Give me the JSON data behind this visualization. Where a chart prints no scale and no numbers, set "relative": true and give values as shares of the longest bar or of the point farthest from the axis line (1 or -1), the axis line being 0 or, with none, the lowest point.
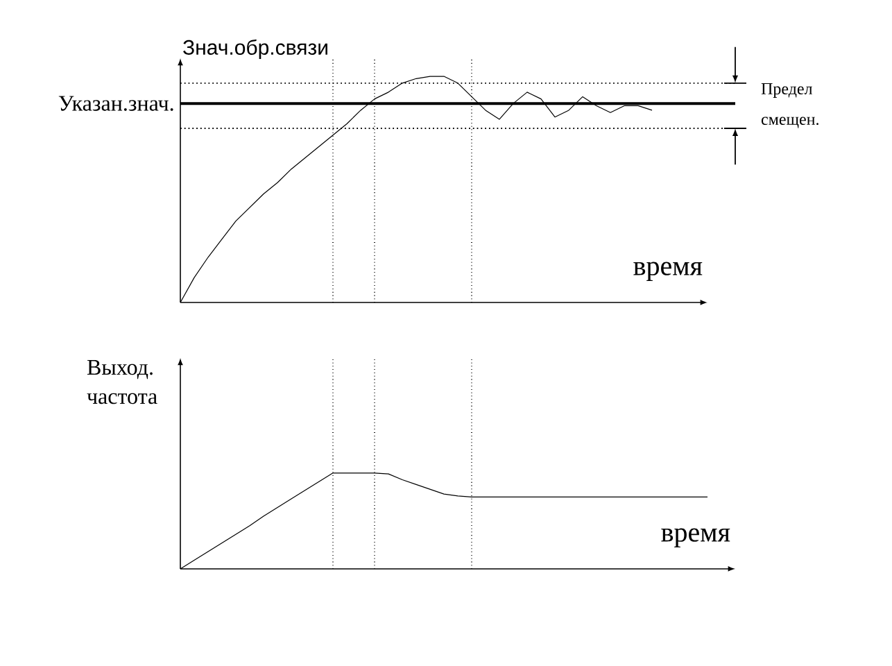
{
  "chart_data": [
    {
      "type": "line",
      "relative": true,
      "ylabel": "Знач.обр.связи",
      "xlabel": "время",
      "marker": "none",
      "grid": "x",
      "categories": [
        null,
        null,
        null,
        null,
        null,
        null,
        null,
        null,
        null,
        null,
        null,
        null,
        null,
        null,
        null,
        null,
        null,
        null,
        null,
        null,
        null,
        null,
        null,
        null,
        null,
        null,
        null,
        null,
        null,
        null,
        null,
        null,
        null,
        null,
        null
      ],
      "series": [
        {
          "color": "#000000",
          "values": [
            0,
            0.11,
            0.2,
            0.28,
            0.36,
            0.42,
            0.48,
            0.53,
            0.59,
            0.64,
            0.69,
            0.74,
            0.79,
            0.85,
            0.9,
            0.93,
            0.97,
            0.99,
            1,
            1,
            0.97,
            0.91,
            0.85,
            0.81,
            0.88,
            0.93,
            0.9,
            0.82,
            0.85,
            0.91,
            0.87,
            0.84,
            0.87,
            0.87,
            0.85
          ]
        }
      ],
      "ref_lines": [
        {
          "axis": "y",
          "value": 0.88,
          "label": "Указан.знач.",
          "color": "#000000",
          "line_style": "solid"
        },
        {
          "axis": "y",
          "value": 0.97,
          "color": "#000000",
          "line_style": "dotted"
        },
        {
          "axis": "y",
          "value": 0.77,
          "color": "#000000",
          "line_style": "dotted"
        }
      ],
      "annotations": [
        "Предел смещен."
      ]
    },
    {
      "type": "line",
      "relative": true,
      "ylabel": "Выход. частота",
      "xlabel": "время",
      "marker": "none",
      "grid": "x",
      "categories": [
        null,
        null,
        null,
        null,
        null,
        null,
        null,
        null,
        null,
        null,
        null,
        null,
        null,
        null,
        null,
        null,
        null,
        null,
        null,
        null,
        null,
        null,
        null,
        null,
        null,
        null,
        null,
        null,
        null,
        null,
        null,
        null,
        null,
        null,
        null,
        null,
        null,
        null,
        null
      ],
      "series": [
        {
          "color": "#000000",
          "values": [
            0,
            0.09,
            0.18,
            0.27,
            0.36,
            0.45,
            0.55,
            0.64,
            0.73,
            0.82,
            0.91,
            1,
            1,
            1,
            1,
            0.99,
            0.93,
            0.88,
            0.83,
            0.78,
            0.76,
            0.75,
            0.75,
            0.75,
            0.75,
            0.75,
            0.75,
            0.75,
            0.75,
            0.75,
            0.75,
            0.75,
            0.75,
            0.75,
            0.75,
            0.75,
            0.75,
            0.75,
            0.75
          ]
        }
      ]
    }
  ]
}
